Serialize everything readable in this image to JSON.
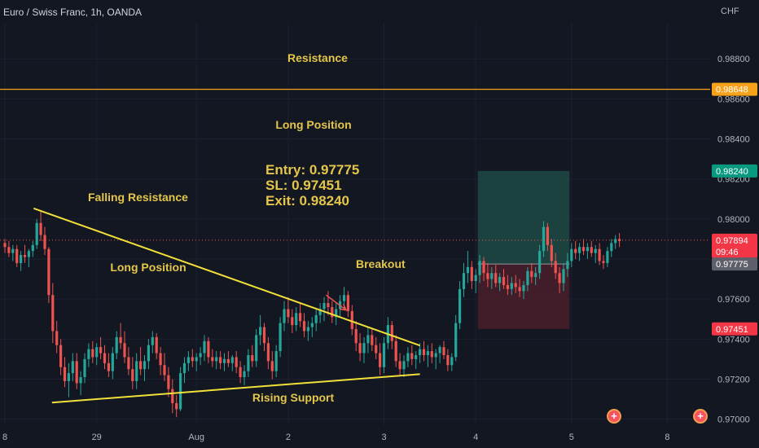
{
  "header": {
    "symbol_title": "Euro / Swiss Franc, 1h, OANDA",
    "currency": "CHF"
  },
  "chart_data": {
    "type": "candlestick",
    "ylim": [
      0.9697,
      0.9898
    ],
    "y_ticks": [
      "0.98800",
      "0.98600",
      "0.98400",
      "0.98200",
      "0.98000",
      "0.97800",
      "0.97600",
      "0.97400",
      "0.97200",
      "0.97000"
    ],
    "x_ticks": [
      {
        "label": "8",
        "idx": 0
      },
      {
        "label": "29",
        "idx": 23
      },
      {
        "label": "Aug",
        "idx": 48
      },
      {
        "label": "2",
        "idx": 71
      },
      {
        "label": "3",
        "idx": 95
      },
      {
        "label": "4",
        "idx": 118
      },
      {
        "label": "5",
        "idx": 142
      },
      {
        "label": "8",
        "idx": 166
      }
    ],
    "ohlc": [
      [
        0.9788,
        0.979,
        0.9783,
        0.9786
      ],
      [
        0.9786,
        0.9789,
        0.9781,
        0.9783
      ],
      [
        0.9783,
        0.9787,
        0.9779,
        0.9785
      ],
      [
        0.9785,
        0.9787,
        0.9776,
        0.9778
      ],
      [
        0.9778,
        0.9784,
        0.9774,
        0.9782
      ],
      [
        0.9782,
        0.9787,
        0.9778,
        0.9781
      ],
      [
        0.9781,
        0.9785,
        0.9776,
        0.9784
      ],
      [
        0.9784,
        0.9789,
        0.9781,
        0.9787
      ],
      [
        0.9787,
        0.98,
        0.9785,
        0.9798
      ],
      [
        0.9798,
        0.9804,
        0.9789,
        0.9792
      ],
      [
        0.9792,
        0.9796,
        0.9782,
        0.9785
      ],
      [
        0.9785,
        0.9786,
        0.9758,
        0.9762
      ],
      [
        0.9762,
        0.9768,
        0.9738,
        0.9744
      ],
      [
        0.9744,
        0.9749,
        0.9733,
        0.9737
      ],
      [
        0.9737,
        0.974,
        0.9722,
        0.9726
      ],
      [
        0.9726,
        0.9731,
        0.9716,
        0.9719
      ],
      [
        0.9719,
        0.9728,
        0.9711,
        0.9723
      ],
      [
        0.9723,
        0.9733,
        0.9719,
        0.9729
      ],
      [
        0.9729,
        0.9733,
        0.9715,
        0.9718
      ],
      [
        0.9718,
        0.9724,
        0.9712,
        0.9721
      ],
      [
        0.9721,
        0.9733,
        0.9718,
        0.973
      ],
      [
        0.973,
        0.9738,
        0.9726,
        0.9735
      ],
      [
        0.9735,
        0.9739,
        0.9728,
        0.9731
      ],
      [
        0.9731,
        0.9738,
        0.9727,
        0.9736
      ],
      [
        0.9736,
        0.9741,
        0.973,
        0.9733
      ],
      [
        0.9733,
        0.9737,
        0.9725,
        0.9728
      ],
      [
        0.9728,
        0.9733,
        0.9721,
        0.9724
      ],
      [
        0.9724,
        0.9736,
        0.972,
        0.9733
      ],
      [
        0.9733,
        0.9744,
        0.973,
        0.9741
      ],
      [
        0.9741,
        0.9748,
        0.9735,
        0.9738
      ],
      [
        0.9738,
        0.9744,
        0.9728,
        0.9731
      ],
      [
        0.9731,
        0.9736,
        0.9722,
        0.9725
      ],
      [
        0.9725,
        0.9731,
        0.9715,
        0.9719
      ],
      [
        0.9719,
        0.9733,
        0.9715,
        0.9729
      ],
      [
        0.9729,
        0.9736,
        0.9722,
        0.9725
      ],
      [
        0.9725,
        0.9732,
        0.9719,
        0.9729
      ],
      [
        0.9729,
        0.974,
        0.9725,
        0.9737
      ],
      [
        0.9737,
        0.9744,
        0.9733,
        0.9741
      ],
      [
        0.9741,
        0.9743,
        0.973,
        0.9733
      ],
      [
        0.9733,
        0.9736,
        0.9722,
        0.9727
      ],
      [
        0.9727,
        0.9733,
        0.9719,
        0.9722
      ],
      [
        0.9722,
        0.9726,
        0.9711,
        0.9715
      ],
      [
        0.9715,
        0.972,
        0.9703,
        0.9708
      ],
      [
        0.9708,
        0.9712,
        0.9701,
        0.9705
      ],
      [
        0.9705,
        0.9726,
        0.9704,
        0.9723
      ],
      [
        0.9723,
        0.9731,
        0.9718,
        0.9728
      ],
      [
        0.9728,
        0.9734,
        0.9724,
        0.9731
      ],
      [
        0.9731,
        0.9735,
        0.9726,
        0.9729
      ],
      [
        0.9729,
        0.9733,
        0.9724,
        0.9731
      ],
      [
        0.9731,
        0.9736,
        0.9727,
        0.9733
      ],
      [
        0.9733,
        0.9742,
        0.9729,
        0.9739
      ],
      [
        0.9739,
        0.9741,
        0.9728,
        0.9731
      ],
      [
        0.9731,
        0.9735,
        0.9726,
        0.9729
      ],
      [
        0.9729,
        0.9734,
        0.9725,
        0.9731
      ],
      [
        0.9731,
        0.9734,
        0.9725,
        0.9728
      ],
      [
        0.9728,
        0.9733,
        0.9724,
        0.973
      ],
      [
        0.973,
        0.9734,
        0.9726,
        0.9728
      ],
      [
        0.9728,
        0.9732,
        0.9724,
        0.9731
      ],
      [
        0.9731,
        0.9734,
        0.9723,
        0.9726
      ],
      [
        0.9726,
        0.9729,
        0.9718,
        0.9721
      ],
      [
        0.9721,
        0.9727,
        0.9717,
        0.9724
      ],
      [
        0.9724,
        0.9735,
        0.9721,
        0.9732
      ],
      [
        0.9732,
        0.9737,
        0.9726,
        0.9729
      ],
      [
        0.9729,
        0.9745,
        0.9726,
        0.9742
      ],
      [
        0.9742,
        0.9752,
        0.9737,
        0.9746
      ],
      [
        0.9746,
        0.9748,
        0.9734,
        0.9738
      ],
      [
        0.9738,
        0.9741,
        0.9725,
        0.9729
      ],
      [
        0.9729,
        0.9734,
        0.972,
        0.9724
      ],
      [
        0.9724,
        0.9737,
        0.9721,
        0.9734
      ],
      [
        0.9734,
        0.9751,
        0.9731,
        0.9748
      ],
      [
        0.9748,
        0.9759,
        0.9744,
        0.9755
      ],
      [
        0.9755,
        0.9761,
        0.9748,
        0.9751
      ],
      [
        0.9751,
        0.9755,
        0.9743,
        0.9747
      ],
      [
        0.9747,
        0.9756,
        0.9744,
        0.9753
      ],
      [
        0.9753,
        0.9758,
        0.9746,
        0.9749
      ],
      [
        0.9749,
        0.9753,
        0.9741,
        0.9744
      ],
      [
        0.9744,
        0.9749,
        0.9739,
        0.9746
      ],
      [
        0.9746,
        0.9751,
        0.9741,
        0.9748
      ],
      [
        0.9748,
        0.9755,
        0.9744,
        0.9752
      ],
      [
        0.9752,
        0.9758,
        0.9748,
        0.9755
      ],
      [
        0.9755,
        0.9761,
        0.9749,
        0.9758
      ],
      [
        0.9758,
        0.9764,
        0.9752,
        0.9756
      ],
      [
        0.9756,
        0.9759,
        0.9748,
        0.9751
      ],
      [
        0.9751,
        0.9758,
        0.9747,
        0.9755
      ],
      [
        0.9755,
        0.9762,
        0.9751,
        0.9759
      ],
      [
        0.9759,
        0.9766,
        0.9755,
        0.9762
      ],
      [
        0.9762,
        0.9764,
        0.9751,
        0.9754
      ],
      [
        0.9754,
        0.9757,
        0.9742,
        0.9745
      ],
      [
        0.9745,
        0.9749,
        0.9734,
        0.9738
      ],
      [
        0.9738,
        0.9743,
        0.9729,
        0.9733
      ],
      [
        0.9733,
        0.9741,
        0.9728,
        0.9738
      ],
      [
        0.9738,
        0.9746,
        0.9733,
        0.9742
      ],
      [
        0.9742,
        0.9745,
        0.9734,
        0.9737
      ],
      [
        0.9737,
        0.9741,
        0.973,
        0.9733
      ],
      [
        0.9733,
        0.9738,
        0.9722,
        0.9726
      ],
      [
        0.9726,
        0.9741,
        0.9723,
        0.9738
      ],
      [
        0.9738,
        0.9751,
        0.9735,
        0.9747
      ],
      [
        0.9747,
        0.9749,
        0.9735,
        0.9739
      ],
      [
        0.9739,
        0.9742,
        0.9726,
        0.9729
      ],
      [
        0.9729,
        0.9733,
        0.9722,
        0.9725
      ],
      [
        0.9725,
        0.9732,
        0.9721,
        0.9729
      ],
      [
        0.9729,
        0.9736,
        0.9726,
        0.9733
      ],
      [
        0.9733,
        0.9737,
        0.9727,
        0.973
      ],
      [
        0.973,
        0.9734,
        0.9725,
        0.9732
      ],
      [
        0.9732,
        0.9738,
        0.9728,
        0.9735
      ],
      [
        0.9735,
        0.9739,
        0.9729,
        0.9732
      ],
      [
        0.9732,
        0.9737,
        0.9726,
        0.9734
      ],
      [
        0.9734,
        0.9738,
        0.9728,
        0.9731
      ],
      [
        0.9731,
        0.9735,
        0.9725,
        0.9733
      ],
      [
        0.9733,
        0.9737,
        0.9728,
        0.9736
      ],
      [
        0.9736,
        0.9739,
        0.973,
        0.9732
      ],
      [
        0.9732,
        0.9735,
        0.9724,
        0.9727
      ],
      [
        0.9727,
        0.9733,
        0.9724,
        0.9731
      ],
      [
        0.9731,
        0.9752,
        0.9729,
        0.9748
      ],
      [
        0.9748,
        0.9769,
        0.9745,
        0.9765
      ],
      [
        0.9765,
        0.9778,
        0.9761,
        0.9773
      ],
      [
        0.9773,
        0.9784,
        0.9768,
        0.9776
      ],
      [
        0.9776,
        0.9779,
        0.9765,
        0.9769
      ],
      [
        0.9769,
        0.9775,
        0.9763,
        0.9772
      ],
      [
        0.9772,
        0.9782,
        0.9768,
        0.9779
      ],
      [
        0.9779,
        0.9781,
        0.9769,
        0.9773
      ],
      [
        0.9773,
        0.9778,
        0.9766,
        0.977
      ],
      [
        0.977,
        0.9776,
        0.9765,
        0.9773
      ],
      [
        0.9773,
        0.9777,
        0.9766,
        0.9768
      ],
      [
        0.9768,
        0.9773,
        0.9764,
        0.9771
      ],
      [
        0.9771,
        0.9775,
        0.9765,
        0.9767
      ],
      [
        0.9767,
        0.9772,
        0.9762,
        0.9765
      ],
      [
        0.9765,
        0.9771,
        0.9762,
        0.9768
      ],
      [
        0.9768,
        0.9772,
        0.9763,
        0.9766
      ],
      [
        0.9766,
        0.977,
        0.9761,
        0.9764
      ],
      [
        0.9764,
        0.9769,
        0.976,
        0.9767
      ],
      [
        0.9767,
        0.9776,
        0.9764,
        0.9774
      ],
      [
        0.9774,
        0.9778,
        0.9768,
        0.9771
      ],
      [
        0.9771,
        0.9776,
        0.9767,
        0.9773
      ],
      [
        0.9773,
        0.9787,
        0.977,
        0.9784
      ],
      [
        0.9784,
        0.9799,
        0.9781,
        0.9796
      ],
      [
        0.9796,
        0.9798,
        0.9784,
        0.9787
      ],
      [
        0.9787,
        0.979,
        0.9776,
        0.9779
      ],
      [
        0.9779,
        0.9783,
        0.977,
        0.9773
      ],
      [
        0.9773,
        0.9776,
        0.9763,
        0.9768
      ],
      [
        0.9768,
        0.9778,
        0.9764,
        0.9775
      ],
      [
        0.9775,
        0.9783,
        0.9771,
        0.9779
      ],
      [
        0.9779,
        0.9788,
        0.9776,
        0.9785
      ],
      [
        0.9785,
        0.9789,
        0.978,
        0.9783
      ],
      [
        0.9783,
        0.9788,
        0.9779,
        0.9786
      ],
      [
        0.9786,
        0.979,
        0.9782,
        0.9784
      ],
      [
        0.9784,
        0.9788,
        0.978,
        0.9786
      ],
      [
        0.9786,
        0.9789,
        0.9781,
        0.9783
      ],
      [
        0.9783,
        0.9787,
        0.9778,
        0.9785
      ],
      [
        0.9785,
        0.9788,
        0.9777,
        0.9779
      ],
      [
        0.9779,
        0.9782,
        0.9775,
        0.9778
      ],
      [
        0.9778,
        0.9786,
        0.9776,
        0.9784
      ],
      [
        0.9784,
        0.979,
        0.9781,
        0.9788
      ],
      [
        0.9788,
        0.9792,
        0.9785,
        0.979
      ],
      [
        0.979,
        0.9793,
        0.9786,
        0.9789
      ]
    ],
    "lines": [
      {
        "name": "falling-resistance",
        "p1": {
          "idx": 7.2,
          "y": 0.98053
        },
        "p2": {
          "idx": 104.0,
          "y": 0.97368
        }
      },
      {
        "name": "rising-support",
        "p1": {
          "idx": 11.8,
          "y": 0.97083
        },
        "p2": {
          "idx": 104.0,
          "y": 0.97225
        }
      }
    ],
    "arrow": {
      "from": {
        "idx": 80.5,
        "y": 0.9762
      },
      "to": {
        "idx": 85.5,
        "y": 0.97545
      }
    },
    "position_box": {
      "idx_start": 118.5,
      "idx_end": 141.5
    },
    "resistance_price": 0.98648,
    "entry": 0.97775,
    "stop_loss": 0.97451,
    "exit": 0.9824,
    "current_price": 0.97894,
    "price_labels": {
      "resistance": "0.98648",
      "exit": "0.98240",
      "current": "0.97894",
      "countdown": "09:46",
      "entry": "0.97775",
      "stop": "0.97451"
    },
    "annotations": {
      "resistance": "Resistance",
      "long_position_top": "Long Position",
      "entry_line": "Entry: 0.97775",
      "sl_line": "SL: 0.97451",
      "exit_line": "Exit: 0.98240",
      "falling_resistance": "Falling Resistance",
      "long_position_mid": "Long Position",
      "breakout": "Breakout",
      "rising_support": "Rising Support"
    },
    "colors": {
      "background": "#131722",
      "up": "#26a69a",
      "down": "#ef5350",
      "trendline": "#f2e03a",
      "resistance_line": "#f7a21b",
      "annotation_text": "#e3c64a",
      "arrow": "#ef5350",
      "target_zone": "#1e4a45",
      "stop_zone": "#4a1f2a"
    }
  },
  "event_markers": [
    {
      "name": "event-flag-1",
      "symbol": "+"
    },
    {
      "name": "event-flag-2",
      "symbol": "+"
    }
  ]
}
